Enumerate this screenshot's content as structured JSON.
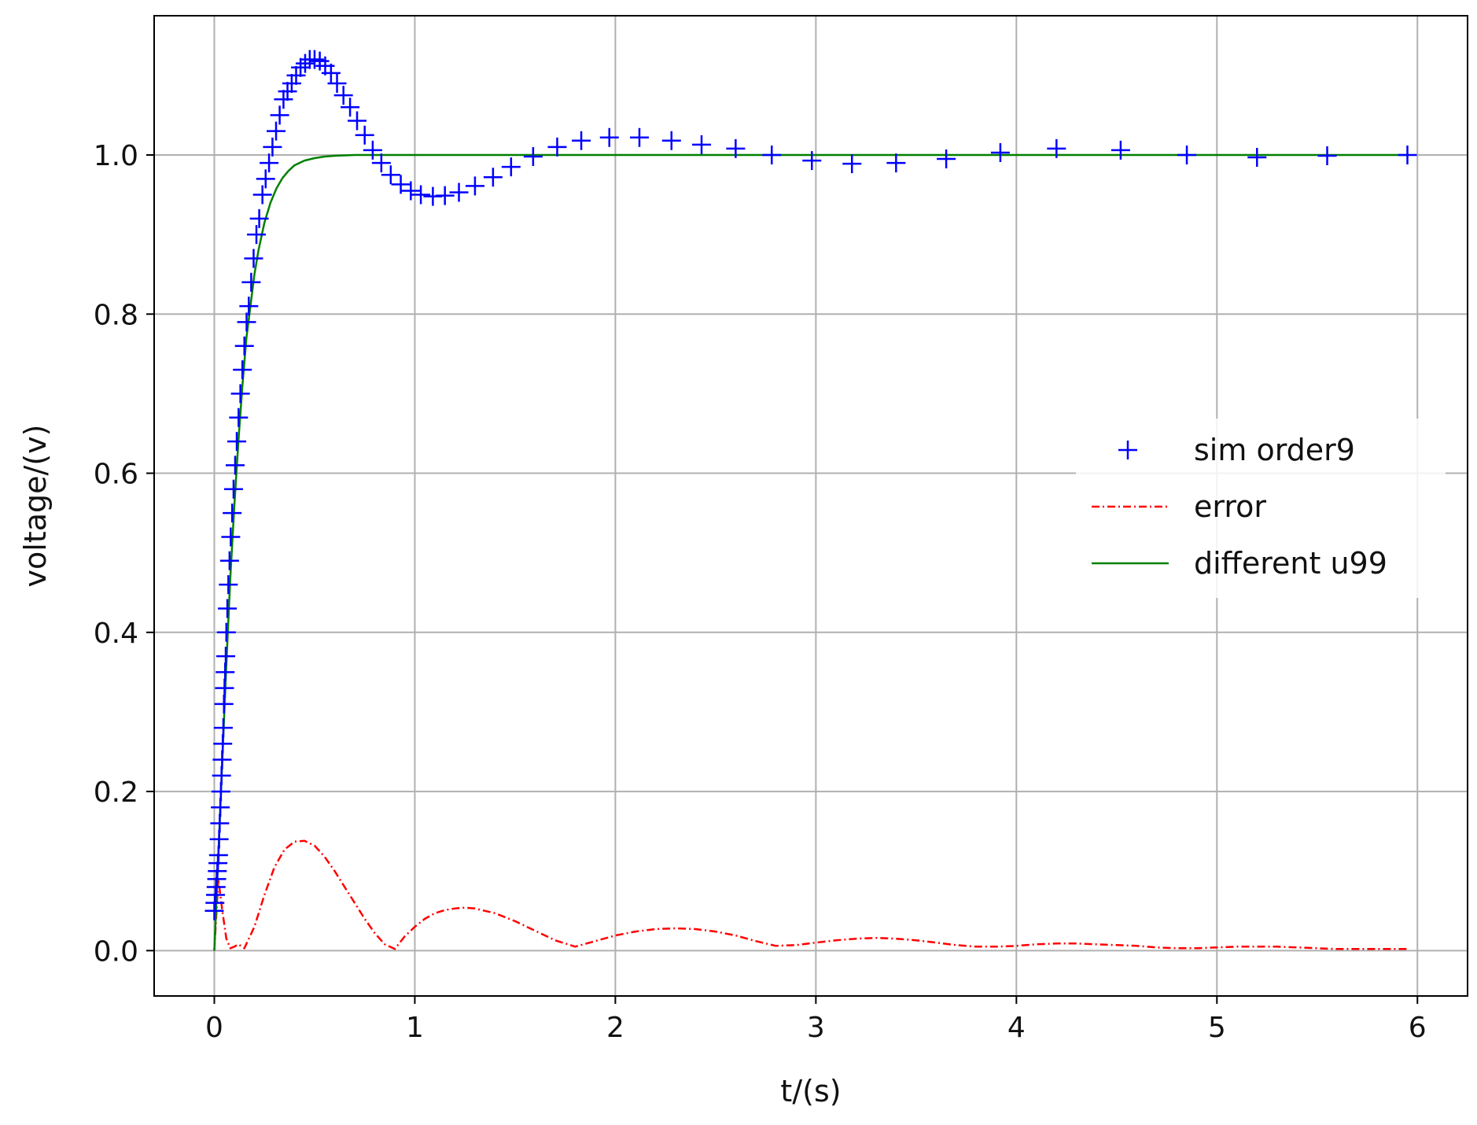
{
  "chart_data": {
    "type": "line",
    "title": "",
    "xlabel": "t/(s)",
    "ylabel": "voltage/(v)",
    "xlim": [
      -0.3,
      6.25
    ],
    "ylim": [
      -0.057,
      1.175
    ],
    "xticks": [
      0,
      1,
      2,
      3,
      4,
      5,
      6
    ],
    "xtick_labels": [
      "0",
      "1",
      "2",
      "3",
      "4",
      "5",
      "6"
    ],
    "yticks": [
      0.0,
      0.2,
      0.4,
      0.6,
      0.8,
      1.0
    ],
    "ytick_labels": [
      "0.0",
      "0.2",
      "0.4",
      "0.6",
      "0.8",
      "1.0"
    ],
    "grid": true,
    "legend_position": "center-right",
    "series": [
      {
        "name": "sim order9",
        "style": "markers-plus",
        "color": "#0000ff",
        "x": [
          0.0,
          0.003,
          0.006,
          0.009,
          0.012,
          0.015,
          0.018,
          0.021,
          0.024,
          0.027,
          0.03,
          0.033,
          0.036,
          0.039,
          0.042,
          0.045,
          0.048,
          0.051,
          0.054,
          0.057,
          0.06,
          0.065,
          0.07,
          0.076,
          0.082,
          0.089,
          0.096,
          0.104,
          0.112,
          0.121,
          0.13,
          0.14,
          0.15,
          0.161,
          0.172,
          0.184,
          0.196,
          0.21,
          0.224,
          0.24,
          0.256,
          0.273,
          0.29,
          0.308,
          0.326,
          0.345,
          0.365,
          0.386,
          0.408,
          0.43,
          0.453,
          0.476,
          0.5,
          0.526,
          0.553,
          0.582,
          0.612,
          0.644,
          0.677,
          0.712,
          0.75,
          0.79,
          0.833,
          0.88,
          0.93,
          0.98,
          1.03,
          1.09,
          1.15,
          1.22,
          1.3,
          1.39,
          1.48,
          1.59,
          1.71,
          1.83,
          1.97,
          2.12,
          2.28,
          2.43,
          2.6,
          2.78,
          2.98,
          3.18,
          3.4,
          3.65,
          3.92,
          4.2,
          4.52,
          4.85,
          5.2,
          5.55,
          5.95
        ],
        "y": [
          0.05,
          0.06,
          0.07,
          0.08,
          0.09,
          0.1,
          0.11,
          0.12,
          0.14,
          0.16,
          0.18,
          0.2,
          0.22,
          0.24,
          0.26,
          0.28,
          0.31,
          0.33,
          0.35,
          0.37,
          0.4,
          0.43,
          0.46,
          0.49,
          0.52,
          0.55,
          0.58,
          0.61,
          0.64,
          0.67,
          0.7,
          0.73,
          0.76,
          0.79,
          0.81,
          0.84,
          0.87,
          0.9,
          0.92,
          0.95,
          0.97,
          0.99,
          1.01,
          1.03,
          1.05,
          1.07,
          1.08,
          1.09,
          1.1,
          1.11,
          1.115,
          1.12,
          1.12,
          1.118,
          1.112,
          1.103,
          1.09,
          1.075,
          1.06,
          1.043,
          1.025,
          1.006,
          0.99,
          0.975,
          0.963,
          0.955,
          0.95,
          0.948,
          0.949,
          0.953,
          0.961,
          0.972,
          0.985,
          0.998,
          1.01,
          1.018,
          1.022,
          1.022,
          1.018,
          1.013,
          1.008,
          1.0,
          0.993,
          0.989,
          0.99,
          0.995,
          1.003,
          1.008,
          1.006,
          1.0,
          0.997,
          0.999,
          1.0
        ]
      },
      {
        "name": "error",
        "style": "dashdot",
        "color": "#ff0000",
        "x": [
          0.0,
          0.02,
          0.04,
          0.06,
          0.08,
          0.1,
          0.12,
          0.15,
          0.2,
          0.25,
          0.3,
          0.35,
          0.4,
          0.45,
          0.5,
          0.55,
          0.6,
          0.65,
          0.7,
          0.75,
          0.8,
          0.85,
          0.9,
          0.95,
          1.0,
          1.05,
          1.1,
          1.15,
          1.2,
          1.25,
          1.3,
          1.4,
          1.5,
          1.6,
          1.7,
          1.8,
          1.9,
          2.0,
          2.1,
          2.2,
          2.3,
          2.4,
          2.5,
          2.6,
          2.7,
          2.8,
          2.9,
          3.0,
          3.1,
          3.2,
          3.3,
          3.4,
          3.5,
          3.6,
          3.7,
          3.8,
          3.9,
          4.0,
          4.1,
          4.2,
          4.3,
          4.4,
          4.5,
          4.6,
          4.7,
          4.8,
          4.9,
          5.0,
          5.1,
          5.2,
          5.3,
          5.4,
          5.5,
          5.6,
          5.7,
          5.8,
          5.95
        ],
        "y": [
          0.0,
          0.09,
          0.05,
          0.015,
          0.003,
          0.005,
          0.008,
          0.003,
          0.03,
          0.07,
          0.105,
          0.127,
          0.137,
          0.138,
          0.132,
          0.118,
          0.1,
          0.08,
          0.06,
          0.04,
          0.022,
          0.008,
          0.002,
          0.018,
          0.03,
          0.04,
          0.047,
          0.051,
          0.053,
          0.054,
          0.053,
          0.047,
          0.037,
          0.025,
          0.013,
          0.005,
          0.012,
          0.019,
          0.024,
          0.027,
          0.028,
          0.027,
          0.024,
          0.019,
          0.012,
          0.006,
          0.007,
          0.01,
          0.013,
          0.015,
          0.016,
          0.015,
          0.013,
          0.01,
          0.007,
          0.005,
          0.005,
          0.006,
          0.008,
          0.009,
          0.009,
          0.008,
          0.007,
          0.006,
          0.004,
          0.003,
          0.003,
          0.004,
          0.005,
          0.005,
          0.005,
          0.004,
          0.003,
          0.002,
          0.002,
          0.002,
          0.002
        ]
      },
      {
        "name": "different u99",
        "style": "solid",
        "color": "#008000",
        "x": [
          0.0,
          0.02,
          0.04,
          0.06,
          0.08,
          0.1,
          0.12,
          0.14,
          0.16,
          0.18,
          0.2,
          0.22,
          0.25,
          0.28,
          0.31,
          0.34,
          0.37,
          0.4,
          0.45,
          0.5,
          0.55,
          0.6,
          0.7,
          0.8,
          0.9,
          1.0,
          1.5,
          2.0,
          3.0,
          4.0,
          5.0,
          5.95
        ],
        "y": [
          0.0,
          0.12,
          0.24,
          0.36,
          0.47,
          0.56,
          0.64,
          0.71,
          0.77,
          0.81,
          0.85,
          0.88,
          0.915,
          0.94,
          0.958,
          0.971,
          0.98,
          0.987,
          0.993,
          0.996,
          0.998,
          0.999,
          1.0,
          1.0,
          1.0,
          1.0,
          1.0,
          1.0,
          1.0,
          1.0,
          1.0,
          1.0
        ]
      }
    ]
  }
}
